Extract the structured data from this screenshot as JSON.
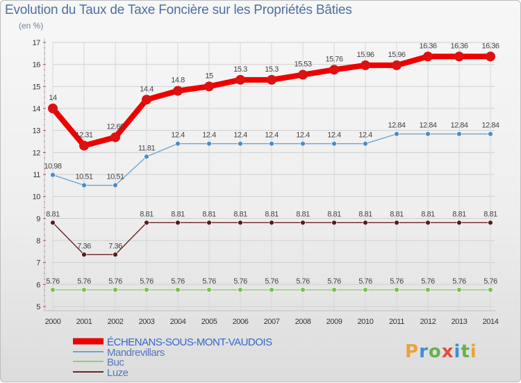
{
  "header": {
    "title": "Evolution du Taux de Taxe Foncière sur les Propriétés Bâties",
    "unit": "(en %)"
  },
  "logo": {
    "text": "Proxiti",
    "colors": [
      "#e8a33b",
      "#3b8fd4",
      "#6ab04c",
      "#e24c3d",
      "#3b8fd4",
      "#6ab04c",
      "#e8a33b"
    ]
  },
  "chart_data": {
    "type": "line",
    "title": "Evolution du Taux de Taxe Foncière sur les Propriétés Bâties",
    "ylabel": "(en %)",
    "xlabel": "",
    "ylim": [
      5,
      17
    ],
    "yticks": [
      5,
      6,
      7,
      8,
      9,
      10,
      11,
      12,
      13,
      14,
      15,
      16,
      17
    ],
    "grid": true,
    "legend_position": "bottom-left",
    "categories": [
      "2000",
      "2001",
      "2002",
      "2003",
      "2004",
      "2005",
      "2006",
      "2007",
      "2008",
      "2009",
      "2010",
      "2011",
      "2012",
      "2013",
      "2014"
    ],
    "series": [
      {
        "name": "ÉCHENANS-SOUS-MONT-VAUDOIS",
        "color": "#ee0000",
        "marker": "#dd1111",
        "labelColor": "#444444",
        "values": [
          14,
          12.31,
          12.69,
          14.4,
          14.8,
          15,
          15.3,
          15.3,
          15.53,
          15.76,
          15.96,
          15.96,
          16.36,
          16.36,
          16.36
        ],
        "labels": [
          "14",
          "12.31",
          "12.69",
          "14.4",
          "14.8",
          "15",
          "15.3",
          "15.3",
          "15.53",
          "15.76",
          "15.96",
          "15.96",
          "16.36",
          "16.36",
          "16.36"
        ]
      },
      {
        "name": "Mandrevillars",
        "color": "#6fa3d2",
        "marker": "#4a8cc7",
        "labelColor": "#444444",
        "values": [
          10.98,
          10.51,
          10.51,
          11.81,
          12.4,
          12.4,
          12.4,
          12.4,
          12.4,
          12.4,
          12.4,
          12.84,
          12.84,
          12.84,
          12.84
        ],
        "labels": [
          "10.98",
          "10.51",
          "10.51",
          "11.81",
          "12.4",
          "12.4",
          "12.4",
          "12.4",
          "12.4",
          "12.4",
          "12.4",
          "12.84",
          "12.84",
          "12.84",
          "12.84"
        ]
      },
      {
        "name": "Buc",
        "color": "#8fd066",
        "marker": "#79c24d",
        "labelColor": "#444444",
        "values": [
          5.76,
          5.76,
          5.76,
          5.76,
          5.76,
          5.76,
          5.76,
          5.76,
          5.76,
          5.76,
          5.76,
          5.76,
          5.76,
          5.76,
          5.76
        ],
        "labels": [
          "5.76",
          "5.76",
          "5.76",
          "5.76",
          "5.76",
          "5.76",
          "5.76",
          "5.76",
          "5.76",
          "5.76",
          "5.76",
          "5.76",
          "5.76",
          "5.76",
          "5.76"
        ]
      },
      {
        "name": "Luze",
        "color": "#6e2222",
        "marker": "#5a1a1a",
        "labelColor": "#444444",
        "values": [
          8.81,
          7.36,
          7.36,
          8.81,
          8.81,
          8.81,
          8.81,
          8.81,
          8.81,
          8.81,
          8.81,
          8.81,
          8.81,
          8.81,
          8.81
        ],
        "labels": [
          "8.81",
          "7.36",
          "7.36",
          "8.81",
          "8.81",
          "8.81",
          "8.81",
          "8.81",
          "8.81",
          "8.81",
          "8.81",
          "8.81",
          "8.81",
          "8.81",
          "8.81"
        ]
      }
    ]
  }
}
